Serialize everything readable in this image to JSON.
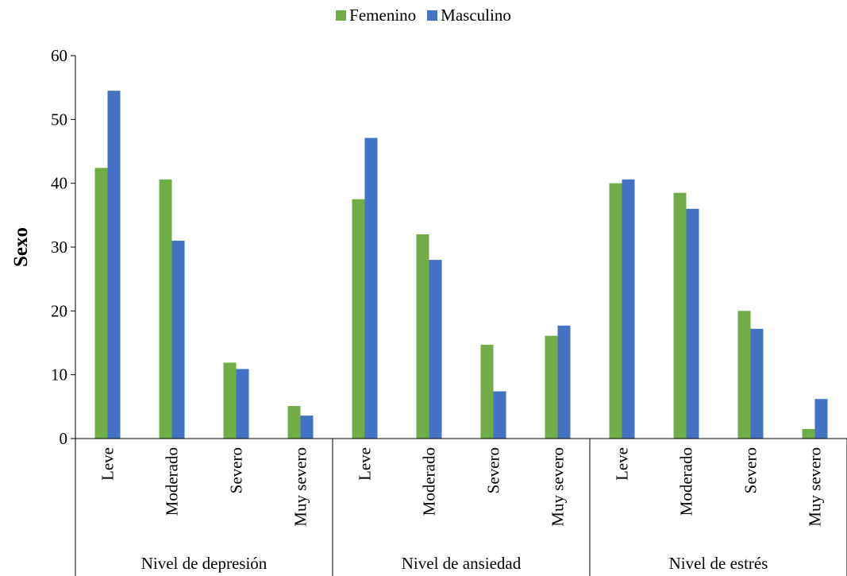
{
  "chart_data": {
    "type": "bar",
    "title": "",
    "ylabel": "Sexo",
    "xlabel": "",
    "ylim": [
      0,
      60
    ],
    "yticks": [
      0,
      10,
      20,
      30,
      40,
      50,
      60
    ],
    "grid": false,
    "legend_position": "top-center",
    "groups": [
      {
        "label": "Nivel de depresión",
        "categories": [
          "Leve",
          "Moderado",
          "Severo",
          "Muy severo"
        ]
      },
      {
        "label": "Nivel de ansiedad",
        "categories": [
          "Leve",
          "Moderado",
          "Severo",
          "Muy severo"
        ]
      },
      {
        "label": "Nivel de estrés",
        "categories": [
          "Leve",
          "Moderado",
          "Severo",
          "Muy severo"
        ]
      }
    ],
    "series": [
      {
        "name": "Femenino",
        "color": "#70ad47",
        "values": [
          42.4,
          40.6,
          11.9,
          5.1,
          37.5,
          32.0,
          14.7,
          16.1,
          40.0,
          38.5,
          20.0,
          1.5
        ]
      },
      {
        "name": "Masculino",
        "color": "#4472c4",
        "values": [
          54.5,
          31.0,
          10.9,
          3.6,
          47.1,
          28.0,
          7.4,
          17.7,
          40.6,
          36.0,
          17.2,
          6.2
        ]
      }
    ]
  }
}
